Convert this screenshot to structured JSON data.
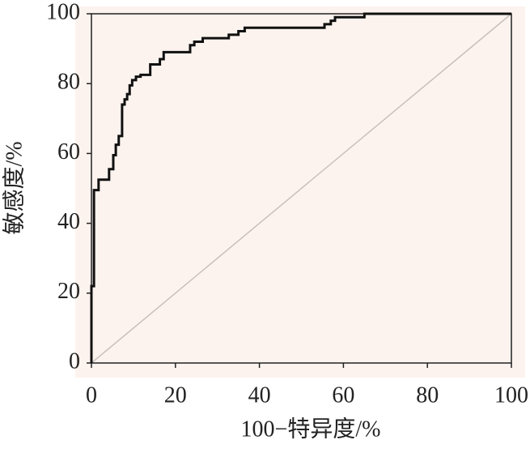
{
  "chart_data": {
    "type": "line",
    "x_label": "100−特异度/%",
    "y_label": "敏感度/%",
    "x": [
      0,
      0,
      0.6,
      0.6,
      1.7,
      1.7,
      4.2,
      4.2,
      5.2,
      5.2,
      5.8,
      5.8,
      6.5,
      6.5,
      7.3,
      7.3,
      7.9,
      7.9,
      8.5,
      8.5,
      9.1,
      9.1,
      9.7,
      9.7,
      10.6,
      10.6,
      11.7,
      11.7,
      14,
      14,
      16.3,
      16.3,
      17.2,
      17.2,
      23.5,
      23.5,
      24.5,
      24.5,
      26.5,
      26.5,
      32.7,
      32.7,
      35,
      35,
      36.5,
      36.5,
      55.5,
      55.5,
      57,
      57,
      58,
      58,
      65,
      65,
      100
    ],
    "series": [
      {
        "color": "#111111",
        "values": [
          0,
          22,
          22,
          49.5,
          49.5,
          52.5,
          52.5,
          55.5,
          55.5,
          59.5,
          59.5,
          62.5,
          62.5,
          65,
          65,
          74,
          74,
          75.5,
          75.5,
          77,
          77,
          79.5,
          79.5,
          81,
          81,
          82,
          82,
          82.5,
          82.5,
          85.5,
          85.5,
          87,
          87,
          89,
          89,
          91,
          91,
          92,
          92,
          93,
          93,
          94,
          94,
          95,
          95,
          96,
          96,
          97,
          97,
          98,
          98,
          99,
          99,
          100,
          100
        ]
      }
    ],
    "xlim": [
      0,
      100
    ],
    "ylim": [
      0,
      100
    ],
    "xticks": [
      0,
      20,
      40,
      60,
      80,
      100
    ],
    "yticks": [
      0,
      20,
      40,
      60,
      80,
      100
    ],
    "reference_line_color": "#c8c0bc",
    "background": "#fdf3ee"
  }
}
